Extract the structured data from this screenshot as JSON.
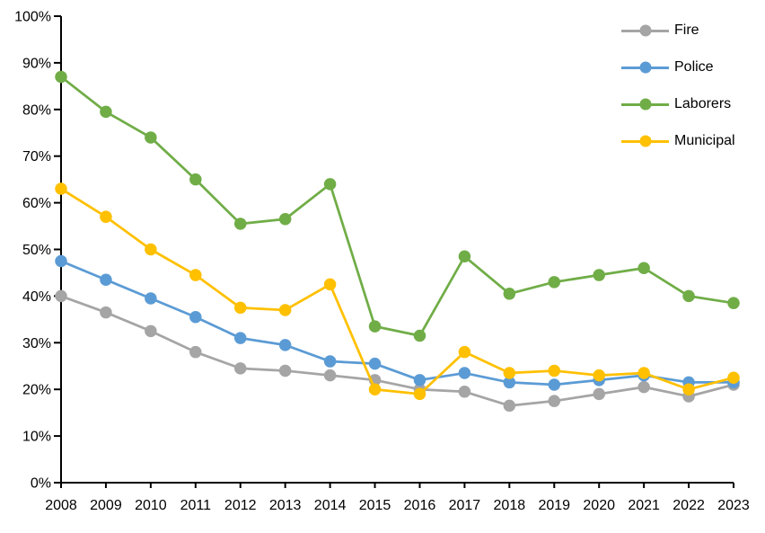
{
  "chart_data": {
    "type": "line",
    "title": "",
    "xlabel": "",
    "ylabel": "",
    "categories": [
      "2008",
      "2009",
      "2010",
      "2011",
      "2012",
      "2013",
      "2014",
      "2015",
      "2016",
      "2017",
      "2018",
      "2019",
      "2020",
      "2021",
      "2022",
      "2023"
    ],
    "y_axis": {
      "min": 0,
      "max": 100,
      "step": 10,
      "tick_labels": [
        "0%",
        "10%",
        "20%",
        "30%",
        "40%",
        "50%",
        "60%",
        "70%",
        "80%",
        "90%",
        "100%"
      ]
    },
    "grid": "off",
    "legend_position": "top-right",
    "axis_color": "#000000",
    "background_color": "#ffffff",
    "series": [
      {
        "name": "Fire",
        "color": "#A5A5A5",
        "values": [
          40,
          36.5,
          32.5,
          28,
          24.5,
          24,
          23,
          22,
          20,
          19.5,
          16.5,
          17.5,
          19,
          20.5,
          18.5,
          21
        ]
      },
      {
        "name": "Police",
        "color": "#5B9BD5",
        "values": [
          47.5,
          43.5,
          39.5,
          35.5,
          31,
          29.5,
          26,
          25.5,
          22,
          23.5,
          21.5,
          21,
          22,
          23,
          21.5,
          21.5
        ]
      },
      {
        "name": "Laborers",
        "color": "#70AD47",
        "values": [
          87,
          79.5,
          74,
          65,
          55.5,
          56.5,
          64,
          33.5,
          31.5,
          48.5,
          40.5,
          43,
          44.5,
          46,
          40,
          38.5
        ]
      },
      {
        "name": "Municipal",
        "color": "#FFC000",
        "values": [
          63,
          57,
          50,
          44.5,
          37.5,
          37,
          42.5,
          20,
          19,
          28,
          23.5,
          24,
          23,
          23.5,
          20,
          22.5
        ]
      }
    ]
  }
}
